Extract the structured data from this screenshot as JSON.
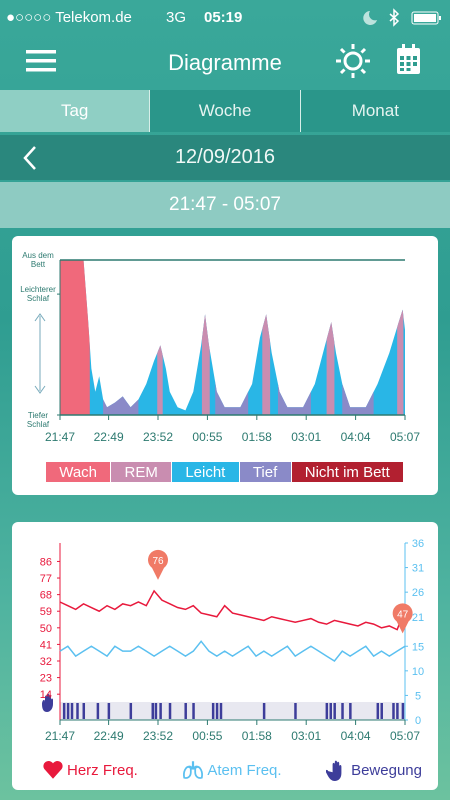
{
  "status_bar": {
    "carrier": "●○○○○ Telekom.de",
    "network": "3G",
    "time": "05:19"
  },
  "header": {
    "title": "Diagramme"
  },
  "tabs": [
    {
      "label": "Tag",
      "selected": true
    },
    {
      "label": "Woche",
      "selected": false
    },
    {
      "label": "Monat",
      "selected": false
    }
  ],
  "date": "12/09/2016",
  "time_range": "21:47 - 05:07",
  "sleep_chart": {
    "xlim": [
      0,
      440
    ],
    "xticks": [
      {
        "value": 0,
        "label": "21:47"
      },
      {
        "value": 62,
        "label": "22:49"
      },
      {
        "value": 125,
        "label": "23:52"
      },
      {
        "value": 188,
        "label": "00:55"
      },
      {
        "value": 251,
        "label": "01:58"
      },
      {
        "value": 314,
        "label": "03:01"
      },
      {
        "value": 377,
        "label": "04:04"
      },
      {
        "value": 440,
        "label": "05:07"
      }
    ],
    "ylim": [
      0,
      100
    ],
    "yticks": [
      {
        "value": 100,
        "label": "Aus dem Bett"
      },
      {
        "value": 78,
        "label": "Leichterer Schlaf"
      },
      {
        "value": 0,
        "label": "Tiefer Schlaf"
      }
    ],
    "points": [
      [
        0,
        100
      ],
      [
        30,
        100
      ],
      [
        36,
        60
      ],
      [
        40,
        30
      ],
      [
        45,
        15
      ],
      [
        50,
        25
      ],
      [
        55,
        10
      ],
      [
        60,
        5
      ],
      [
        70,
        8
      ],
      [
        80,
        12
      ],
      [
        90,
        5
      ],
      [
        100,
        10
      ],
      [
        110,
        20
      ],
      [
        120,
        35
      ],
      [
        128,
        45
      ],
      [
        135,
        30
      ],
      [
        140,
        15
      ],
      [
        150,
        5
      ],
      [
        160,
        3
      ],
      [
        170,
        15
      ],
      [
        180,
        45
      ],
      [
        185,
        65
      ],
      [
        190,
        45
      ],
      [
        200,
        15
      ],
      [
        210,
        5
      ],
      [
        230,
        5
      ],
      [
        245,
        20
      ],
      [
        255,
        50
      ],
      [
        263,
        65
      ],
      [
        270,
        40
      ],
      [
        280,
        15
      ],
      [
        290,
        5
      ],
      [
        310,
        5
      ],
      [
        325,
        20
      ],
      [
        338,
        45
      ],
      [
        346,
        60
      ],
      [
        352,
        40
      ],
      [
        360,
        20
      ],
      [
        370,
        5
      ],
      [
        390,
        5
      ],
      [
        405,
        20
      ],
      [
        420,
        40
      ],
      [
        432,
        60
      ],
      [
        437,
        68
      ],
      [
        440,
        55
      ]
    ],
    "stages": [
      {
        "stage": "Wach",
        "start": 0,
        "end": 38
      },
      {
        "stage": "Tief",
        "start": 55,
        "end": 100
      },
      {
        "stage": "REM",
        "start": 124,
        "end": 131
      },
      {
        "stage": "REM",
        "start": 181,
        "end": 191
      },
      {
        "stage": "Tief",
        "start": 198,
        "end": 240
      },
      {
        "stage": "REM",
        "start": 258,
        "end": 268
      },
      {
        "stage": "Tief",
        "start": 278,
        "end": 320
      },
      {
        "stage": "REM",
        "start": 340,
        "end": 350
      },
      {
        "stage": "Tief",
        "start": 360,
        "end": 400
      },
      {
        "stage": "REM",
        "start": 430,
        "end": 438
      }
    ],
    "base_color": "#29b6e6",
    "legend": [
      {
        "label": "Wach",
        "color": "#f0697b"
      },
      {
        "label": "REM",
        "color": "#c98db0"
      },
      {
        "label": "Leicht",
        "color": "#29b6e6"
      },
      {
        "label": "Tief",
        "color": "#8a8ac8"
      },
      {
        "label": "Nicht im Bett",
        "color": "#b22030"
      }
    ]
  },
  "vitals_chart": {
    "xlim": [
      0,
      440
    ],
    "xticks": [
      {
        "value": 0,
        "label": "21:47"
      },
      {
        "value": 62,
        "label": "22:49"
      },
      {
        "value": 125,
        "label": "23:52"
      },
      {
        "value": 188,
        "label": "00:55"
      },
      {
        "value": 251,
        "label": "01:58"
      },
      {
        "value": 314,
        "label": "03:01"
      },
      {
        "value": 377,
        "label": "04:04"
      },
      {
        "value": 440,
        "label": "05:07"
      }
    ],
    "ylim": [
      0,
      96
    ],
    "yticks": [
      86,
      77,
      68,
      59,
      50,
      41,
      32,
      23,
      14
    ],
    "y2lim": [
      0,
      36
    ],
    "y2ticks": [
      36,
      31,
      26,
      21,
      15,
      10,
      5,
      0
    ],
    "x": [
      0,
      10,
      20,
      30,
      40,
      50,
      60,
      70,
      80,
      90,
      100,
      110,
      120,
      130,
      140,
      150,
      160,
      170,
      180,
      190,
      200,
      210,
      220,
      230,
      240,
      250,
      260,
      270,
      280,
      290,
      300,
      310,
      320,
      330,
      340,
      350,
      360,
      370,
      380,
      390,
      400,
      410,
      420,
      430,
      440
    ],
    "series": [
      {
        "name": "Herz Freq.",
        "color": "#e8193c",
        "axis": "y",
        "values": [
          64,
          62,
          60,
          63,
          61,
          59,
          62,
          60,
          63,
          62,
          64,
          62,
          70,
          65,
          63,
          61,
          60,
          62,
          58,
          57,
          56,
          62,
          58,
          57,
          56,
          55,
          54,
          56,
          55,
          54,
          53,
          54,
          55,
          53,
          52,
          54,
          53,
          52,
          51,
          53,
          52,
          50,
          51,
          49,
          60
        ]
      },
      {
        "name": "Atem Freq.",
        "color": "#5bc0f0",
        "axis": "y2",
        "values": [
          14,
          15,
          13,
          14,
          15,
          14,
          13,
          15,
          14,
          14,
          15,
          14,
          13,
          14,
          15,
          14,
          13,
          14,
          16,
          14,
          13,
          14,
          13,
          14,
          15,
          13,
          14,
          13,
          14,
          15,
          13,
          14,
          15,
          14,
          13,
          12,
          14,
          13,
          14,
          15,
          13,
          14,
          13,
          14,
          15
        ]
      }
    ],
    "movement": {
      "name": "Bewegung",
      "color": "#3d3d9a",
      "x": [
        5,
        10,
        15,
        22,
        30,
        48,
        62,
        90,
        118,
        122,
        128,
        140,
        160,
        170,
        195,
        200,
        205,
        260,
        300,
        340,
        345,
        350,
        360,
        370,
        405,
        410,
        425,
        430,
        437
      ]
    },
    "markers": [
      {
        "x": 125,
        "value": 76
      },
      {
        "x": 437,
        "value": 47
      }
    ]
  }
}
